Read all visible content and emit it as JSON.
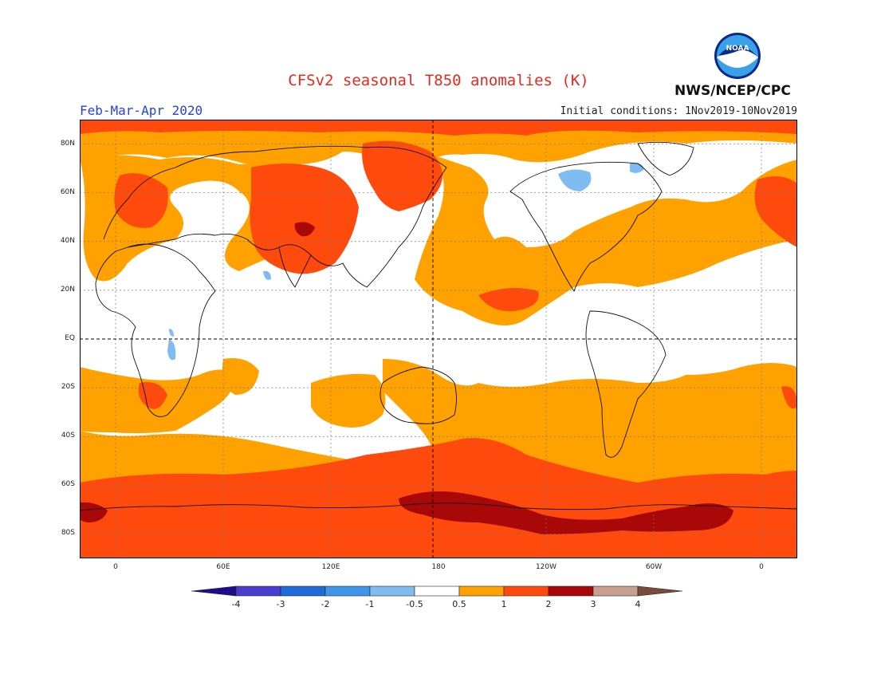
{
  "header": {
    "title": "CFSv2 seasonal T850 anomalies (K)",
    "period": "Feb-Mar-Apr 2020",
    "initial_conditions": "Initial conditions: 1Nov2019-10Nov2019",
    "agency": "NWS/NCEP/CPC",
    "logo_text": "NOAA"
  },
  "map": {
    "projection": "equirectangular",
    "lon_range": [
      -20,
      380
    ],
    "lat_range": [
      -90,
      90
    ],
    "grid": "dotted 20°",
    "lat_labels": [
      {
        "lat": 80,
        "label": "80N"
      },
      {
        "lat": 60,
        "label": "60N"
      },
      {
        "lat": 40,
        "label": "40N"
      },
      {
        "lat": 20,
        "label": "20N"
      },
      {
        "lat": 0,
        "label": "EQ"
      },
      {
        "lat": -20,
        "label": "20S"
      },
      {
        "lat": -40,
        "label": "40S"
      },
      {
        "lat": -60,
        "label": "60S"
      },
      {
        "lat": -80,
        "label": "80S"
      }
    ],
    "lon_labels": [
      {
        "lon": 0,
        "label": "0"
      },
      {
        "lon": 60,
        "label": "60E"
      },
      {
        "lon": 120,
        "label": "120E"
      },
      {
        "lon": 180,
        "label": "180"
      },
      {
        "lon": 240,
        "label": "120W"
      },
      {
        "lon": 300,
        "label": "60W"
      },
      {
        "lon": 360,
        "label": "0"
      }
    ],
    "dashed_lines": [
      "equator",
      "dateline"
    ]
  },
  "colorbar": {
    "ticks": [
      "-4",
      "-3",
      "-2",
      "-1",
      "-0.5",
      "0.5",
      "1",
      "2",
      "3",
      "4"
    ],
    "colors": [
      "#1f0b8c",
      "#4a3ccf",
      "#1e6ad8",
      "#3f94ec",
      "#7fbcf2",
      "#ffffff",
      "#ffa200",
      "#ff4a0e",
      "#a80808",
      "#c8a090",
      "#7a4a3c"
    ]
  }
}
